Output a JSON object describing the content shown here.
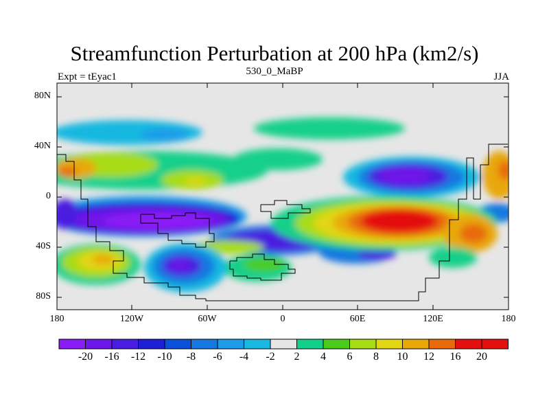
{
  "title": "Streamfunction Perturbation at 200 hPa (km2/s)",
  "left_subtitle": "Expt = tEyac1",
  "center_subtitle": "530_0_MaBP",
  "right_subtitle": "JJA",
  "lat_ticks": [
    "80N",
    "40N",
    "0",
    "40S",
    "80S"
  ],
  "lon_ticks": [
    "180",
    "120W",
    "60W",
    "0",
    "60E",
    "120E",
    "180"
  ],
  "colorbar": {
    "labels": [
      "-20",
      "-16",
      "-12",
      "-10",
      "-8",
      "-6",
      "-4",
      "-2",
      "2",
      "4",
      "6",
      "8",
      "10",
      "12",
      "16",
      "20"
    ],
    "colors": [
      "#8a1cf5",
      "#6f17e8",
      "#4a1ee0",
      "#1e1ed6",
      "#0a50d8",
      "#1478e0",
      "#1e9be8",
      "#18b8e0",
      "#e6e6e6",
      "#12d08a",
      "#4ccc1a",
      "#a8dc14",
      "#e2d614",
      "#e8a80a",
      "#e86a0a",
      "#e41010"
    ]
  }
}
